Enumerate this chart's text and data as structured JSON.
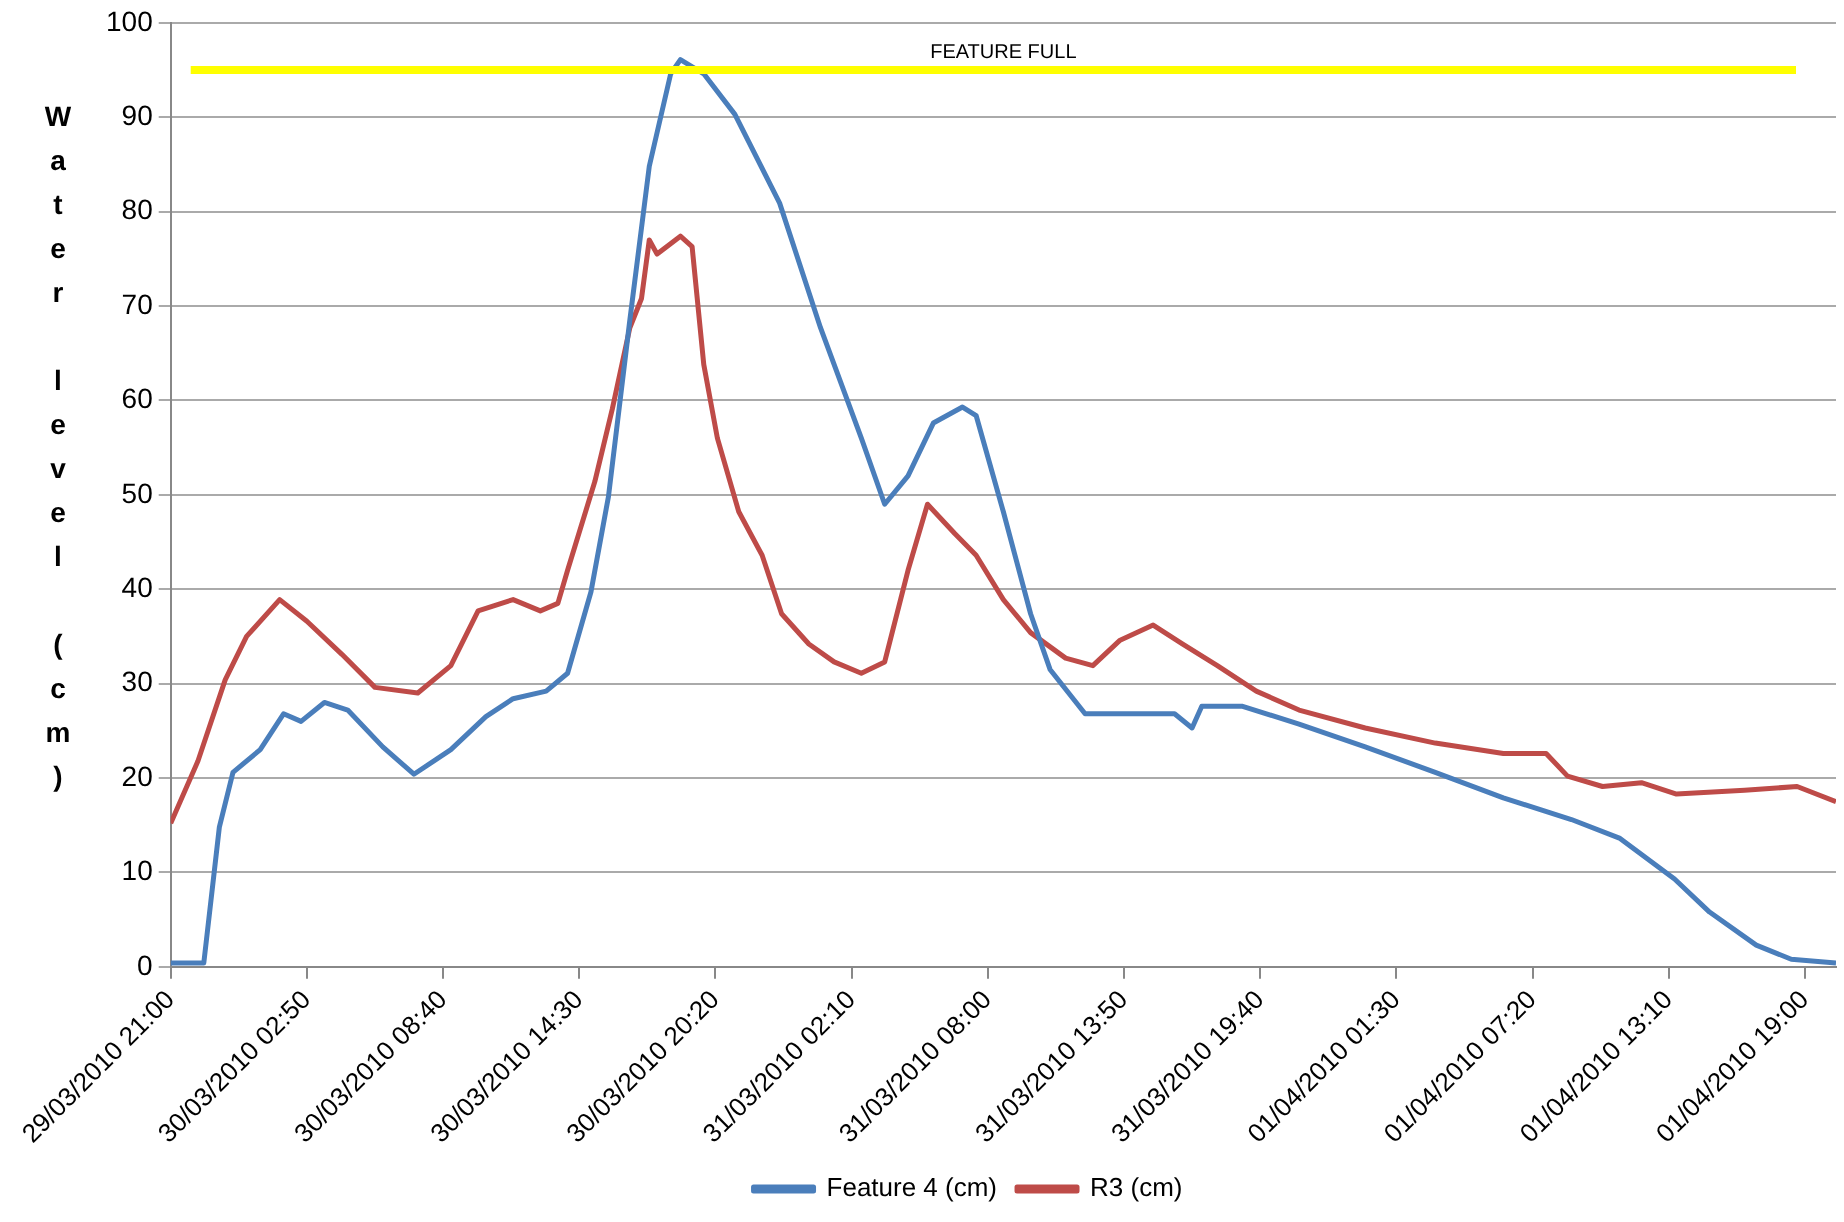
{
  "chart_data": {
    "type": "line",
    "ylabel": "Water level (cm)",
    "xlim": [
      "2010-03-29T21:00",
      "2010-04-01T20:20"
    ],
    "ylim": [
      0,
      100
    ],
    "xticks": [
      {
        "value": "2010-03-29T21:00",
        "label": "29/03/2010 21:00"
      },
      {
        "value": "2010-03-30T02:50",
        "label": "30/03/2010 02:50"
      },
      {
        "value": "2010-03-30T08:40",
        "label": "30/03/2010 08:40"
      },
      {
        "value": "2010-03-30T14:30",
        "label": "30/03/2010 14:30"
      },
      {
        "value": "2010-03-30T20:20",
        "label": "30/03/2010 20:20"
      },
      {
        "value": "2010-03-31T02:10",
        "label": "31/03/2010 02:10"
      },
      {
        "value": "2010-03-31T08:00",
        "label": "31/03/2010 08:00"
      },
      {
        "value": "2010-03-31T13:50",
        "label": "31/03/2010 13:50"
      },
      {
        "value": "2010-03-31T19:40",
        "label": "31/03/2010 19:40"
      },
      {
        "value": "2010-04-01T01:30",
        "label": "01/04/2010 01:30"
      },
      {
        "value": "2010-04-01T07:20",
        "label": "01/04/2010 07:20"
      },
      {
        "value": "2010-04-01T13:10",
        "label": "01/04/2010 13:10"
      },
      {
        "value": "2010-04-01T19:00",
        "label": "01/04/2010 19:00"
      }
    ],
    "yticks": [
      0,
      10,
      20,
      30,
      40,
      50,
      60,
      70,
      80,
      90,
      100
    ],
    "grid": "y",
    "legend": "bottom",
    "marker": "none",
    "line_style": "solid",
    "ref_lines": [
      {
        "axis": "y",
        "value": 95,
        "label": "FEATURE FULL",
        "color": "#ffff00"
      }
    ],
    "series": [
      {
        "name": "Feature 4 (cm)",
        "color": "#4a7ebb",
        "x": [
          "2010-03-29T21:00",
          "2010-03-29T22:25",
          "2010-03-29T23:05",
          "2010-03-29T23:40",
          "2010-03-30T00:50",
          "2010-03-30T01:50",
          "2010-03-30T02:35",
          "2010-03-30T03:35",
          "2010-03-30T04:35",
          "2010-03-30T06:05",
          "2010-03-30T07:25",
          "2010-03-30T09:00",
          "2010-03-30T10:30",
          "2010-03-30T11:40",
          "2010-03-30T13:05",
          "2010-03-30T14:00",
          "2010-03-30T15:00",
          "2010-03-30T15:45",
          "2010-03-30T16:40",
          "2010-03-30T17:30",
          "2010-03-30T18:25",
          "2010-03-30T18:50",
          "2010-03-30T19:50",
          "2010-03-30T21:10",
          "2010-03-30T23:05",
          "2010-03-31T00:50",
          "2010-03-31T02:35",
          "2010-03-31T03:35",
          "2010-03-31T04:35",
          "2010-03-31T05:40",
          "2010-03-31T06:55",
          "2010-03-31T07:30",
          "2010-03-31T08:40",
          "2010-03-31T09:50",
          "2010-03-31T10:40",
          "2010-03-31T12:10",
          "2010-03-31T13:40",
          "2010-03-31T16:00",
          "2010-03-31T16:45",
          "2010-03-31T17:10",
          "2010-03-31T18:55",
          "2010-03-31T21:20",
          "2010-04-01T00:10",
          "2010-04-01T03:10",
          "2010-04-01T06:05",
          "2010-04-01T09:00",
          "2010-04-01T11:05",
          "2010-04-01T13:25",
          "2010-04-01T14:55",
          "2010-04-01T16:55",
          "2010-04-01T18:25",
          "2010-04-01T20:20"
        ],
        "values": [
          0.4,
          0.4,
          14.8,
          20.6,
          23,
          26.8,
          26,
          28,
          27.2,
          23.3,
          20.4,
          23,
          26.5,
          28.4,
          29.2,
          31.1,
          39.7,
          49.8,
          68.5,
          84.8,
          94.6,
          96.1,
          94.6,
          90.3,
          80.9,
          67.7,
          56,
          49,
          52,
          57.6,
          59.3,
          58.4,
          48.2,
          37.4,
          31.5,
          26.8,
          26.8,
          26.8,
          25.3,
          27.6,
          27.6,
          25.7,
          23.3,
          20.6,
          17.9,
          15.6,
          13.6,
          9.3,
          5.8,
          2.3,
          0.8,
          0.4
        ]
      },
      {
        "name": "R3 (cm)",
        "color": "#be4b48",
        "x": [
          "2010-03-29T21:00",
          "2010-03-29T22:10",
          "2010-03-29T23:20",
          "2010-03-30T00:15",
          "2010-03-30T01:40",
          "2010-03-30T02:50",
          "2010-03-30T04:20",
          "2010-03-30T05:45",
          "2010-03-30T07:35",
          "2010-03-30T09:00",
          "2010-03-30T10:10",
          "2010-03-30T11:40",
          "2010-03-30T12:50",
          "2010-03-30T13:35",
          "2010-03-30T14:00",
          "2010-03-30T15:10",
          "2010-03-30T15:55",
          "2010-03-30T16:40",
          "2010-03-30T17:10",
          "2010-03-30T17:30",
          "2010-03-30T17:50",
          "2010-03-30T18:50",
          "2010-03-30T19:20",
          "2010-03-30T19:50",
          "2010-03-30T20:25",
          "2010-03-30T21:20",
          "2010-03-30T22:20",
          "2010-03-30T23:10",
          "2010-03-31T00:20",
          "2010-03-31T01:25",
          "2010-03-31T02:35",
          "2010-03-31T03:35",
          "2010-03-31T04:35",
          "2010-03-31T05:25",
          "2010-03-31T06:35",
          "2010-03-31T07:30",
          "2010-03-31T08:40",
          "2010-03-31T09:50",
          "2010-03-31T11:20",
          "2010-03-31T12:30",
          "2010-03-31T13:40",
          "2010-03-31T15:05",
          "2010-03-31T16:20",
          "2010-03-31T17:50",
          "2010-03-31T19:30",
          "2010-03-31T21:20",
          "2010-04-01T00:10",
          "2010-04-01T03:10",
          "2010-04-01T06:05",
          "2010-04-01T07:55",
          "2010-04-01T08:50",
          "2010-04-01T10:20",
          "2010-04-01T12:00",
          "2010-04-01T13:30",
          "2010-04-01T16:25",
          "2010-04-01T18:40",
          "2010-04-01T20:20"
        ],
        "values": [
          15.2,
          21.8,
          30.4,
          35,
          38.9,
          36.6,
          33.1,
          29.6,
          29,
          31.9,
          37.7,
          38.9,
          37.7,
          38.5,
          42,
          51.4,
          59.1,
          67.7,
          70.8,
          77,
          75.5,
          77.4,
          76.3,
          63.8,
          56,
          48.2,
          43.6,
          37.4,
          34.2,
          32.3,
          31.1,
          32.3,
          42,
          49,
          45.9,
          43.6,
          38.9,
          35.4,
          32.7,
          31.9,
          34.6,
          36.2,
          34.2,
          31.9,
          29.2,
          27.2,
          25.3,
          23.7,
          22.6,
          22.6,
          20.2,
          19.1,
          19.5,
          18.3,
          18.7,
          19.1,
          17.5
        ]
      }
    ]
  }
}
